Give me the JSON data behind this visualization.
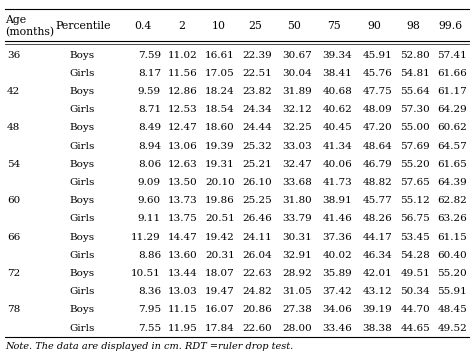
{
  "col_headers": [
    "Age\n(months)",
    "Percentile",
    "0.4",
    "2",
    "10",
    "25",
    "50",
    "75",
    "90",
    "98",
    "99.6"
  ],
  "rows": [
    [
      "36",
      "Boys",
      "7.59",
      "11.02",
      "16.61",
      "22.39",
      "30.67",
      "39.34",
      "45.91",
      "52.80",
      "57.41"
    ],
    [
      "",
      "Girls",
      "8.17",
      "11.56",
      "17.05",
      "22.51",
      "30.04",
      "38.41",
      "45.76",
      "54.81",
      "61.66"
    ],
    [
      "42",
      "Boys",
      "9.59",
      "12.86",
      "18.24",
      "23.82",
      "31.89",
      "40.68",
      "47.75",
      "55.64",
      "61.17"
    ],
    [
      "",
      "Girls",
      "8.71",
      "12.53",
      "18.54",
      "24.34",
      "32.12",
      "40.62",
      "48.09",
      "57.30",
      "64.29"
    ],
    [
      "48",
      "Boys",
      "8.49",
      "12.47",
      "18.60",
      "24.44",
      "32.25",
      "40.45",
      "47.20",
      "55.00",
      "60.62"
    ],
    [
      "",
      "Girls",
      "8.94",
      "13.06",
      "19.39",
      "25.32",
      "33.03",
      "41.34",
      "48.64",
      "57.69",
      "64.57"
    ],
    [
      "54",
      "Boys",
      "8.06",
      "12.63",
      "19.31",
      "25.21",
      "32.47",
      "40.06",
      "46.79",
      "55.20",
      "61.65"
    ],
    [
      "",
      "Girls",
      "9.09",
      "13.50",
      "20.10",
      "26.10",
      "33.68",
      "41.73",
      "48.82",
      "57.65",
      "64.39"
    ],
    [
      "60",
      "Boys",
      "9.60",
      "13.73",
      "19.86",
      "25.25",
      "31.80",
      "38.91",
      "45.77",
      "55.12",
      "62.82"
    ],
    [
      "",
      "Girls",
      "9.11",
      "13.75",
      "20.51",
      "26.46",
      "33.79",
      "41.46",
      "48.26",
      "56.75",
      "63.26"
    ],
    [
      "66",
      "Boys",
      "11.29",
      "14.47",
      "19.42",
      "24.11",
      "30.31",
      "37.36",
      "44.17",
      "53.45",
      "61.15"
    ],
    [
      "",
      "Girls",
      "8.86",
      "13.60",
      "20.31",
      "26.04",
      "32.91",
      "40.02",
      "46.34",
      "54.28",
      "60.40"
    ],
    [
      "72",
      "Boys",
      "10.51",
      "13.44",
      "18.07",
      "22.63",
      "28.92",
      "35.89",
      "42.01",
      "49.51",
      "55.20"
    ],
    [
      "",
      "Girls",
      "8.36",
      "13.03",
      "19.47",
      "24.82",
      "31.05",
      "37.42",
      "43.12",
      "50.34",
      "55.91"
    ],
    [
      "78",
      "Boys",
      "7.95",
      "11.15",
      "16.07",
      "20.86",
      "27.38",
      "34.06",
      "39.19",
      "44.70",
      "48.45"
    ],
    [
      "",
      "Girls",
      "7.55",
      "11.95",
      "17.84",
      "22.60",
      "28.00",
      "33.46",
      "38.38",
      "44.65",
      "49.52"
    ]
  ],
  "note": "Note. The data are displayed in cm. RDT =ruler drop test.",
  "bg_color": "#ffffff",
  "text_color": "#000000",
  "header_fontsize": 7.8,
  "row_fontsize": 7.5,
  "note_fontsize": 7.0
}
